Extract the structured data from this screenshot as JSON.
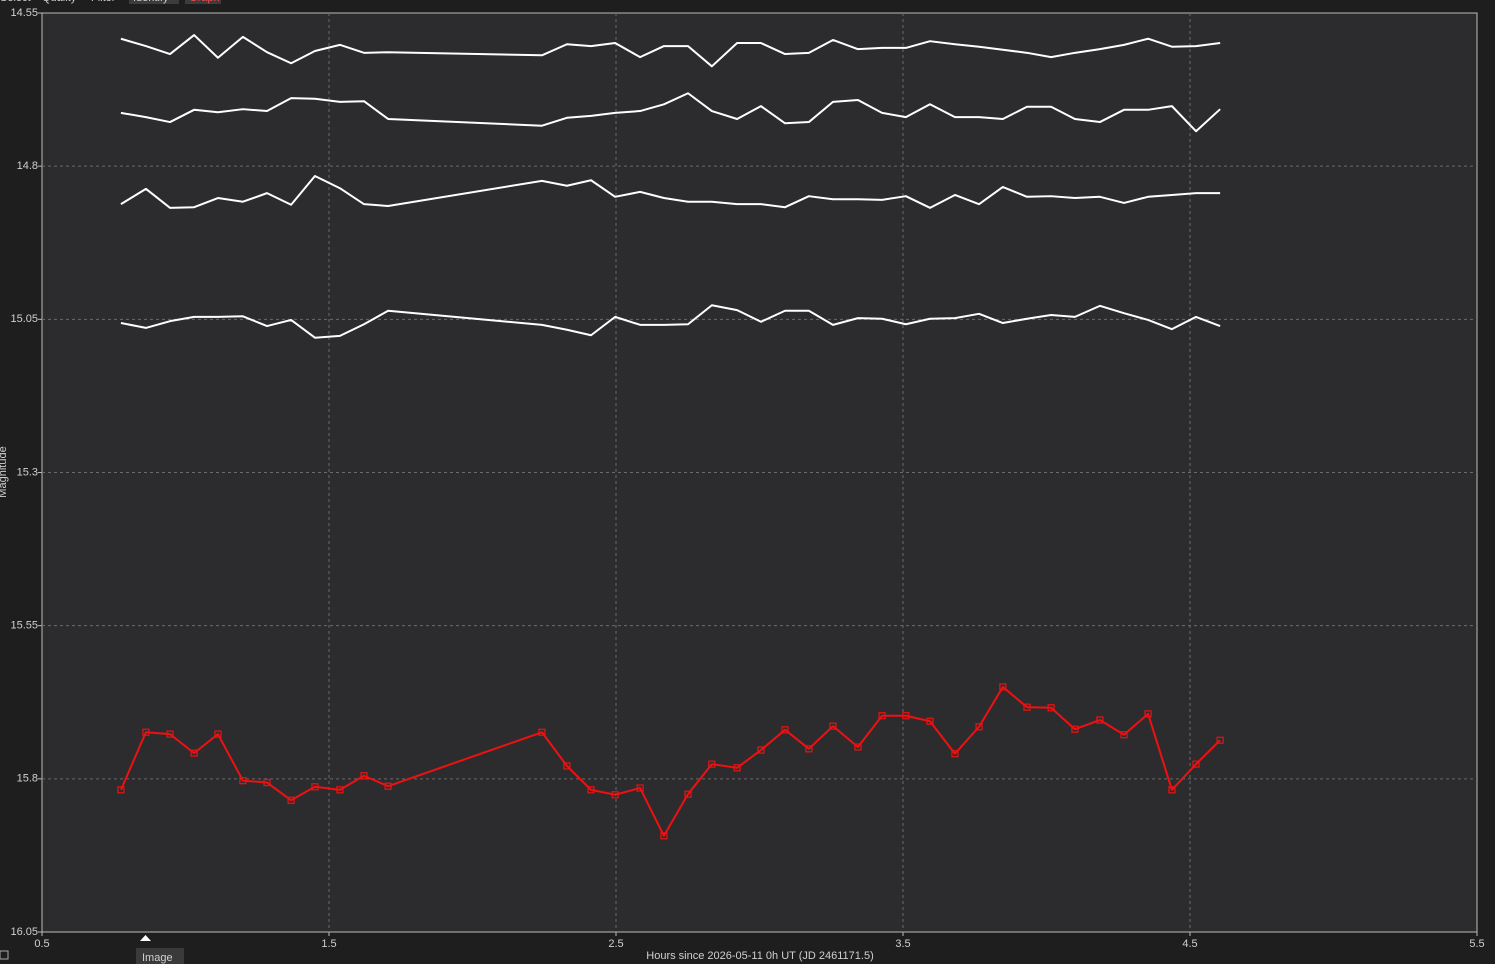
{
  "tabs": [
    "Select",
    "Quality",
    "Filter",
    "Identify",
    "Graph"
  ],
  "image_button": "Image",
  "chart_data": {
    "type": "line",
    "xlabel": "Hours since 2026-05-11 0h UT (JD 2461171.5)",
    "ylabel": "Magnitude",
    "x": [
      0.775,
      0.862,
      0.946,
      1.03,
      1.113,
      1.2,
      1.284,
      1.368,
      1.451,
      1.538,
      1.622,
      1.706,
      2.242,
      2.329,
      2.413,
      2.497,
      2.584,
      2.667,
      2.751,
      2.834,
      2.922,
      3.005,
      3.089,
      3.172,
      3.256,
      3.343,
      3.427,
      3.51,
      3.594,
      3.681,
      3.765,
      3.848,
      3.932,
      4.016,
      4.099,
      4.186,
      4.27,
      4.354,
      4.437,
      4.521,
      4.605
    ],
    "series": [
      {
        "color": "#ffffff",
        "values": [
          14.592,
          14.604,
          14.617,
          14.586,
          14.623,
          14.589,
          14.614,
          14.632,
          14.612,
          14.602,
          14.615,
          14.614,
          14.619,
          14.601,
          14.604,
          14.599,
          14.622,
          14.604,
          14.604,
          14.637,
          14.599,
          14.599,
          14.617,
          14.615,
          14.594,
          14.609,
          14.607,
          14.607,
          14.596,
          14.601,
          14.605,
          14.61,
          14.615,
          14.622,
          14.615,
          14.609,
          14.602,
          14.592,
          14.605,
          14.604,
          14.599
        ]
      },
      {
        "color": "#ffffff",
        "values": [
          14.713,
          14.72,
          14.728,
          14.708,
          14.712,
          14.707,
          14.71,
          14.689,
          14.69,
          14.695,
          14.694,
          14.723,
          14.734,
          14.721,
          14.718,
          14.713,
          14.71,
          14.699,
          14.681,
          14.71,
          14.723,
          14.702,
          14.73,
          14.728,
          14.695,
          14.692,
          14.713,
          14.72,
          14.699,
          14.72,
          14.72,
          14.723,
          14.703,
          14.703,
          14.723,
          14.728,
          14.708,
          14.708,
          14.702,
          14.743,
          14.707
        ]
      },
      {
        "color": "#ffffff",
        "values": [
          14.862,
          14.837,
          14.868,
          14.867,
          14.852,
          14.858,
          14.844,
          14.863,
          14.816,
          14.836,
          14.862,
          14.865,
          14.824,
          14.832,
          14.823,
          14.85,
          14.842,
          14.852,
          14.858,
          14.858,
          14.862,
          14.862,
          14.867,
          14.849,
          14.854,
          14.854,
          14.855,
          14.849,
          14.868,
          14.847,
          14.862,
          14.834,
          14.85,
          14.849,
          14.852,
          14.85,
          14.86,
          14.85,
          14.847,
          14.844,
          14.844
        ]
      },
      {
        "color": "#ffffff",
        "values": [
          15.056,
          15.064,
          15.053,
          15.046,
          15.046,
          15.045,
          15.061,
          15.051,
          15.08,
          15.077,
          15.058,
          15.036,
          15.059,
          15.067,
          15.076,
          15.046,
          15.059,
          15.059,
          15.058,
          15.027,
          15.035,
          15.054,
          15.036,
          15.036,
          15.059,
          15.048,
          15.049,
          15.058,
          15.049,
          15.048,
          15.041,
          15.056,
          15.049,
          15.043,
          15.046,
          15.028,
          15.04,
          15.051,
          15.066,
          15.046,
          15.061
        ]
      },
      {
        "color": "#ee1111",
        "marker": "square",
        "values": [
          15.818,
          15.724,
          15.727,
          15.758,
          15.727,
          15.803,
          15.806,
          15.835,
          15.813,
          15.818,
          15.795,
          15.812,
          15.724,
          15.779,
          15.818,
          15.826,
          15.815,
          15.893,
          15.825,
          15.776,
          15.782,
          15.753,
          15.72,
          15.751,
          15.714,
          15.748,
          15.697,
          15.697,
          15.706,
          15.759,
          15.715,
          15.65,
          15.683,
          15.684,
          15.719,
          15.704,
          15.728,
          15.694,
          15.818,
          15.776,
          15.737
        ]
      }
    ],
    "xlim": [
      0.5,
      5.5
    ],
    "xticks": [
      0.5,
      1.5,
      2.5,
      3.5,
      4.5,
      5.5
    ],
    "ylim": [
      16.05,
      14.55
    ],
    "yticks": [
      14.55,
      14.8,
      15.05,
      15.3,
      15.55,
      15.8,
      16.05
    ],
    "grid": true
  }
}
